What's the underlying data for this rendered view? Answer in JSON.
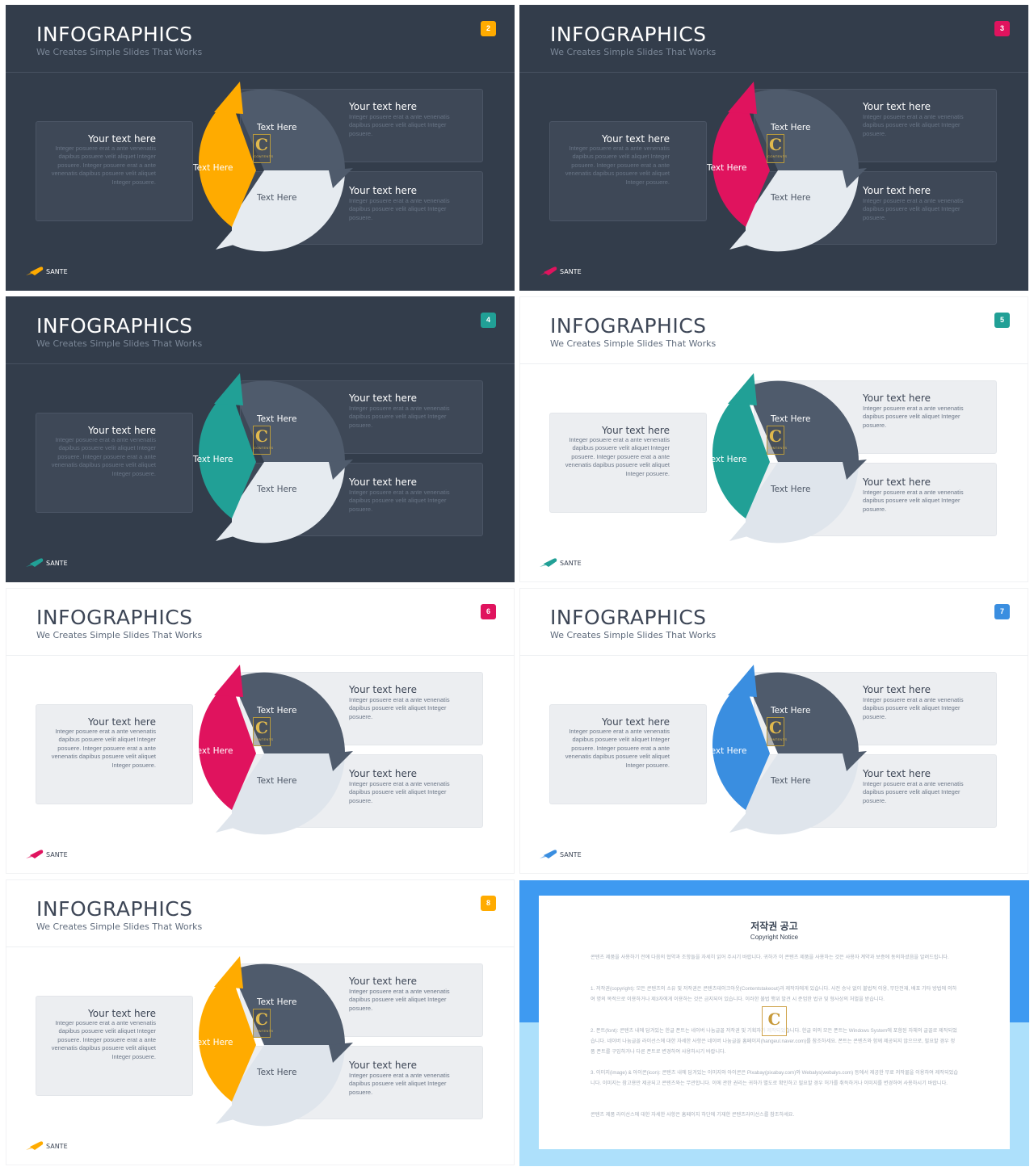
{
  "slide_common": {
    "title": "INFOGRAPHICS",
    "subtitle": "We Creates Simple Slides That Works",
    "left_heading": "Your text here",
    "left_body": "Integer posuere erat a ante venenatis dapibus posuere velit aliquet Integer posuere. Integer posuere erat a ante venenatis dapibus posuere velit aliquet Integer posuere.",
    "right_top_heading": "Your text here",
    "right_top_body": "Integer posuere erat a ante venenatis dapibus posuere velit aliquet Integer posuere.",
    "right_bottom_heading": "Your text here",
    "right_bottom_body": "Integer posuere erat a ante venenatis dapibus posuere velit aliquet Integer posuere.",
    "segment_accent_label": "Text Here",
    "segment_top_label": "Text Here",
    "segment_bottom_label": "Text Here",
    "brand": "SANTE",
    "watermark_letter": "C",
    "watermark_text": "CONTENTS"
  },
  "slides": [
    {
      "number": "2",
      "theme": "dark",
      "accent": "#ffab00"
    },
    {
      "number": "3",
      "theme": "dark",
      "accent": "#e0135e"
    },
    {
      "number": "4",
      "theme": "dark",
      "accent": "#21a096"
    },
    {
      "number": "5",
      "theme": "light",
      "accent": "#21a096"
    },
    {
      "number": "6",
      "theme": "light",
      "accent": "#e0135e"
    },
    {
      "number": "7",
      "theme": "light",
      "accent": "#3a8ee0"
    },
    {
      "number": "8",
      "theme": "light",
      "accent": "#ffab00"
    }
  ],
  "colors": {
    "segment_top": "#4f5b6c",
    "segment_bottom_dark": "#e6ebf0",
    "segment_bottom_light": "#dfe5ec"
  },
  "copyright": {
    "title": "저작권 공고",
    "subtitle": "Copyright Notice",
    "intro": "콘텐츠 제품을 사용하기 전에 다음의 협약과 조항들을 자세히 읽어 주시기 바랍니다. 귀하가 이 콘텐츠 제품을 사용하는 것은 사용자 계약과 보증에 동의하셨음을 알려드립니다.",
    "p1": "1. 저작권(copyright): 모든 콘텐츠의 소유 및 저작권은 콘텐츠테이크아웃(Contentstakeout)과 제작자에게 있습니다. 사전 승낙 없이 불법적 이용, 무단전재, 배포 기타 방법에 의하여 명의 목적으로 이용하거나 제3자에게 이용하는 것은 금지되어 있습니다. 이러한 불법 행위 발견 시 준엄한 법규 및 형사상의 처벌을 받습니다.",
    "p2": "2. 폰트(font): 콘텐츠 내에 담겨있는 한글 폰트는 네이버 나눔글꼴 저작권 및 기획자가 제작되었습니다. 한글 외의 모든 폰트는 Windows System에 포함된 자체의 글꼴로 제작되었습니다. 네이버 나눔글꼴 라이선스에 대한 자세한 사항은 네이버 나눔글꼴 홈페이지(hangeul.naver.com)를 참조하세요. 폰트는 콘텐츠와 함께 제공되지 않으므로, 필요할 경우 정품 폰트를 구입하거나 다른 폰트로 변경하여 사용하시기 바랍니다.",
    "p3": "3. 이미지(image) & 아이콘(icon): 콘텐츠 내에 담겨있는 이미지와 아이콘은 Pixabay(pixabay.com)와 Webalys(webalys.com) 등에서 제공한 무료 저작물을 이용하여 제작되었습니다. 이미지는 참고용만 제공되고 콘텐츠와는 무관합니다. 이에 관한 권리는 귀하가 별도로 확인하고 필요할 경우 허가를 취득하거나 이미지를 변경하여 사용하시기 바랍니다.",
    "outro": "콘텐츠 제품 라이선스에 대한 자세한 사항은 홈페이지 하단에 기재한 콘텐츠라이선스를 참조하세요.",
    "logo_letter": "C",
    "band_color": "#3e9af1",
    "bg_color": "#ade0fb"
  }
}
